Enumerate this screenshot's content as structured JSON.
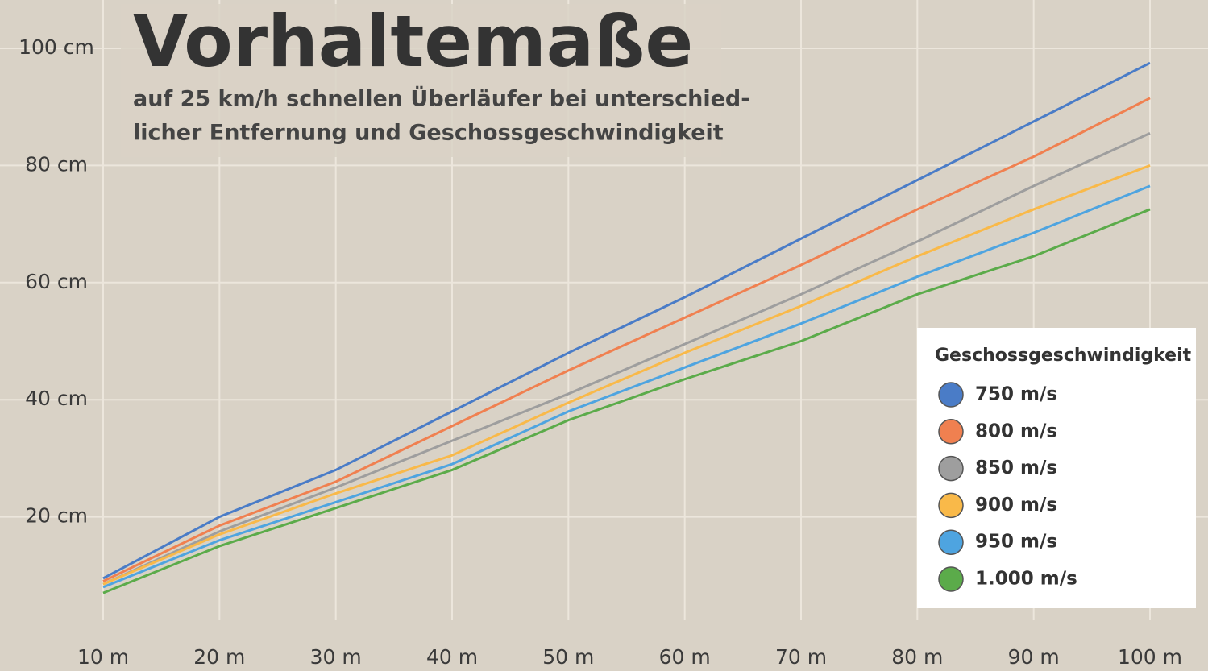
{
  "chart_data": {
    "type": "line",
    "title": "Vorhaltemaße",
    "subtitle": [
      "auf 25 km/h schnellen Überläufer bei unterschied-",
      "licher Entfernung und Geschossgeschwindigkeit"
    ],
    "x": [
      10,
      20,
      30,
      40,
      50,
      60,
      70,
      80,
      90,
      100
    ],
    "xlim": [
      10,
      100
    ],
    "xticks": [
      {
        "value": 10,
        "label": "10 m"
      },
      {
        "value": 20,
        "label": "20 m"
      },
      {
        "value": 30,
        "label": "30 m"
      },
      {
        "value": 40,
        "label": "40 m"
      },
      {
        "value": 50,
        "label": "50 m"
      },
      {
        "value": 60,
        "label": "60 m"
      },
      {
        "value": 70,
        "label": "70 m"
      },
      {
        "value": 80,
        "label": "80 m"
      },
      {
        "value": 90,
        "label": "90 m"
      },
      {
        "value": 100,
        "label": "100 m"
      }
    ],
    "ylim": [
      0,
      100
    ],
    "yticks": [
      {
        "value": 20,
        "label": "20 cm"
      },
      {
        "value": 40,
        "label": "40 cm"
      },
      {
        "value": 60,
        "label": "60 cm"
      },
      {
        "value": 80,
        "label": "80 cm"
      },
      {
        "value": 100,
        "label": "100 cm"
      }
    ],
    "grid": true,
    "legend_title": "Geschossgeschwindigkeit",
    "legend": "lower right",
    "series": [
      {
        "name": "750 m/s",
        "color": "#4a7cc7",
        "values": [
          9.5,
          20,
          28,
          38,
          48,
          57.5,
          67.5,
          77.5,
          87.5,
          97.5
        ]
      },
      {
        "name": "800 m/s",
        "color": "#f08050",
        "values": [
          9,
          18.5,
          26,
          35.5,
          45,
          54,
          63,
          72.5,
          81.5,
          91.5
        ]
      },
      {
        "name": "850 m/s",
        "color": "#9e9e9e",
        "values": [
          8.5,
          17.5,
          25,
          33,
          41,
          49.5,
          58,
          67,
          76.5,
          85.5
        ]
      },
      {
        "name": "900 m/s",
        "color": "#f9b949",
        "values": [
          8.5,
          17,
          24,
          30.5,
          39.5,
          48,
          56,
          64.5,
          72.5,
          80
        ]
      },
      {
        "name": "950 m/s",
        "color": "#4ea4e0",
        "values": [
          8,
          16,
          22.5,
          29,
          38,
          45.5,
          53,
          61,
          68.5,
          76.5
        ]
      },
      {
        "name": "1.000 m/s",
        "color": "#5bab4a",
        "values": [
          7,
          15,
          21.5,
          28,
          36.5,
          43.5,
          50,
          58,
          64.5,
          72.5
        ]
      }
    ]
  }
}
